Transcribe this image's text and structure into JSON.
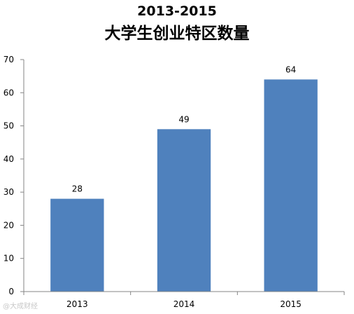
{
  "chart_data": {
    "type": "bar",
    "title": "2013-2015",
    "subtitle": "大学生创业特区数量",
    "categories": [
      "2013",
      "2014",
      "2015"
    ],
    "values": [
      28,
      49,
      64
    ],
    "data_labels": [
      "28",
      "49",
      "64"
    ],
    "ylim": [
      0,
      70
    ],
    "yticks": [
      0,
      10,
      20,
      30,
      40,
      50,
      60,
      70
    ],
    "xlabel": "",
    "ylabel": "",
    "grid": false,
    "legend": false,
    "bar_color": "#4f81bd",
    "axis_color": "#868686"
  },
  "watermark": {
    "text": "@大成财经"
  }
}
